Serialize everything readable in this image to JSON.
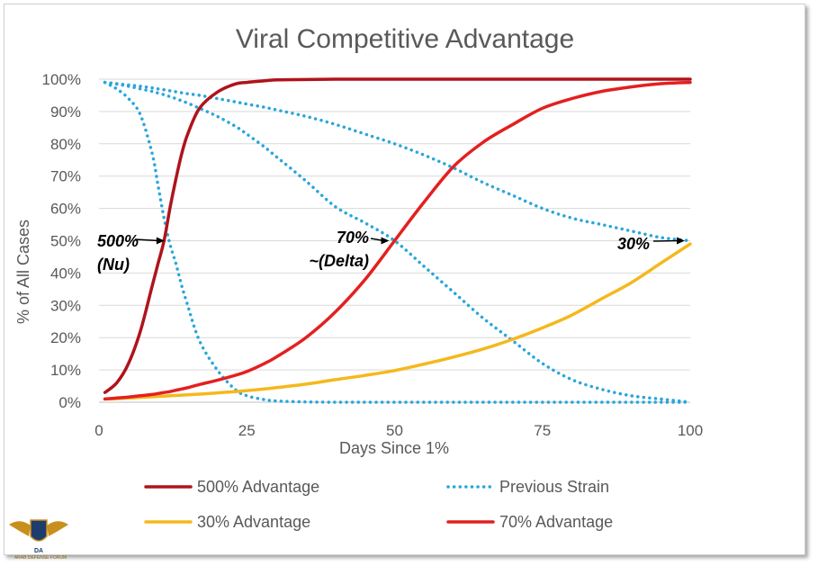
{
  "chart_data": {
    "type": "line",
    "title": "Viral Competitive Advantage",
    "xlabel": "Days Since 1%",
    "ylabel": "% of All Cases",
    "xlim": [
      0,
      100
    ],
    "ylim": [
      0,
      100
    ],
    "x_ticks": [
      0,
      25,
      50,
      75,
      100
    ],
    "y_ticks": [
      0,
      10,
      20,
      30,
      40,
      50,
      60,
      70,
      80,
      90,
      100
    ],
    "x_tick_labels": [
      "0",
      "25",
      "50",
      "75",
      "100"
    ],
    "y_tick_labels": [
      "0%",
      "10%",
      "20%",
      "30%",
      "40%",
      "50%",
      "60%",
      "70%",
      "80%",
      "90%",
      "100%"
    ],
    "grid": "horizontal",
    "legend_position": "bottom",
    "x": [
      1,
      3,
      5,
      7,
      9,
      10,
      11,
      12,
      13,
      14,
      15,
      17,
      20,
      23,
      25,
      28,
      30,
      35,
      40,
      45,
      50,
      55,
      60,
      65,
      70,
      75,
      80,
      85,
      90,
      95,
      100
    ],
    "series": [
      {
        "name": "500% Advantage",
        "color": "#b0131b",
        "style": "solid",
        "values": [
          3,
          6,
          12,
          22,
          36,
          43,
          50,
          60,
          69,
          77,
          83,
          91,
          96,
          98.5,
          99,
          99.5,
          99.8,
          99.9,
          100,
          100,
          100,
          100,
          100,
          100,
          100,
          100,
          100,
          100,
          100,
          100,
          100
        ]
      },
      {
        "name": "Previous Strain",
        "color": "#29a6dc",
        "style": "dotted",
        "values": [
          99,
          98.6,
          98.2,
          97.8,
          97.3,
          97,
          96.7,
          96.4,
          96.1,
          95.8,
          95.5,
          95,
          94,
          93,
          92.3,
          91.3,
          90.5,
          88.5,
          86,
          83,
          80,
          76.5,
          72.5,
          68,
          64,
          60,
          57,
          55,
          53,
          51,
          50
        ]
      },
      {
        "name": "Previous Strain",
        "color": "#29a6dc",
        "style": "dotted",
        "values": [
          99,
          98.5,
          97.8,
          97,
          96.2,
          95.7,
          95.2,
          94.6,
          94,
          93.3,
          92.6,
          91,
          88.5,
          85.5,
          83,
          79,
          76,
          68.5,
          60.5,
          55.5,
          50,
          42,
          34,
          26,
          19,
          12,
          7,
          4,
          2,
          1,
          0
        ]
      },
      {
        "name": "Previous Strain",
        "color": "#29a6dc",
        "style": "dotted",
        "values": [
          99,
          97,
          94,
          89,
          77,
          67,
          57,
          49,
          43,
          36,
          30,
          19,
          10,
          4,
          2,
          0.8,
          0.4,
          0.1,
          0,
          0,
          0,
          0,
          0,
          0,
          0,
          0,
          0,
          0,
          0,
          0,
          0
        ]
      },
      {
        "name": "30% Advantage",
        "color": "#f5b81c",
        "style": "solid",
        "values": [
          1,
          1.1,
          1.3,
          1.5,
          1.7,
          1.8,
          1.9,
          2,
          2.1,
          2.2,
          2.3,
          2.5,
          2.9,
          3.3,
          3.6,
          4.1,
          4.5,
          5.6,
          7,
          8.3,
          9.8,
          11.8,
          14,
          16.5,
          19.5,
          23,
          27,
          32,
          37,
          43,
          49
        ]
      },
      {
        "name": "70% Advantage",
        "color": "#e3201f",
        "style": "solid",
        "values": [
          1,
          1.3,
          1.6,
          2,
          2.4,
          2.7,
          3,
          3.3,
          3.7,
          4.1,
          4.5,
          5.5,
          6.8,
          8.3,
          9.5,
          12,
          14,
          20,
          28,
          38,
          50,
          62,
          73,
          80.5,
          86,
          91,
          94,
          96.2,
          97.6,
          98.6,
          99
        ]
      }
    ],
    "legend": [
      {
        "name": "500% Advantage",
        "color": "#b0131b",
        "style": "solid"
      },
      {
        "name": "Previous Strain",
        "color": "#29a6dc",
        "style": "dotted"
      },
      {
        "name": "30% Advantage",
        "color": "#f5b81c",
        "style": "solid"
      },
      {
        "name": "70% Advantage",
        "color": "#e3201f",
        "style": "solid"
      }
    ],
    "annotations": [
      {
        "lines": [
          "500%",
          "(Nu)"
        ],
        "arrow_to": [
          12,
          50
        ]
      },
      {
        "lines": [
          "70%",
          "~(Delta)"
        ],
        "arrow_to": [
          50,
          50
        ]
      },
      {
        "lines": [
          "30%"
        ],
        "arrow_to": [
          100,
          50
        ]
      }
    ]
  },
  "watermark": {
    "label": "DA",
    "caption": "ARAB DEFENSE FORUM"
  }
}
